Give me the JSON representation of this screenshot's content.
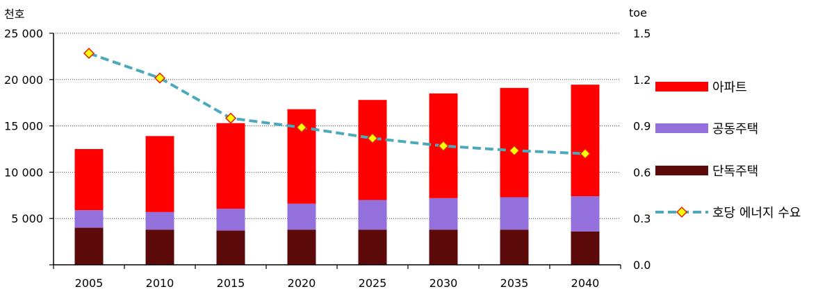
{
  "chart_data": {
    "type": "bar",
    "categories": [
      "2005",
      "2010",
      "2015",
      "2020",
      "2025",
      "2030",
      "2035",
      "2040"
    ],
    "stacked": true,
    "series": [
      {
        "name": "단독주택",
        "color": "#5c0a0a",
        "values": [
          4000,
          3800,
          3700,
          3800,
          3800,
          3800,
          3800,
          3600
        ]
      },
      {
        "name": "공동주택",
        "color": "#9370db",
        "values": [
          1900,
          1900,
          2350,
          2800,
          3200,
          3400,
          3500,
          3800
        ]
      },
      {
        "name": "아파트",
        "color": "#ff0000",
        "values": [
          6600,
          8200,
          9250,
          10200,
          10800,
          11300,
          11800,
          12050
        ]
      }
    ],
    "line": {
      "name": "호당 에너지 수요",
      "color": "#4ba9bb",
      "marker_fill": "#ffff00",
      "marker_stroke": "#e02010",
      "axis": "right",
      "values": [
        1.37,
        1.21,
        0.95,
        0.89,
        0.82,
        0.77,
        0.74,
        0.72
      ]
    },
    "left_axis": {
      "unit": "천호",
      "ylim": [
        0,
        25000
      ],
      "ticks": [
        {
          "value": 0,
          "label": ""
        },
        {
          "value": 5000,
          "label": "5 000"
        },
        {
          "value": 10000,
          "label": "10 000"
        },
        {
          "value": 15000,
          "label": "15 000"
        },
        {
          "value": 20000,
          "label": "20 000"
        },
        {
          "value": 25000,
          "label": "25 000"
        }
      ]
    },
    "right_axis": {
      "unit": "toe",
      "ylim": [
        0,
        1.5
      ],
      "ticks": [
        {
          "value": 0,
          "label": "0.0"
        },
        {
          "value": 0.3,
          "label": "0.3"
        },
        {
          "value": 0.6,
          "label": "0.6"
        },
        {
          "value": 0.9,
          "label": "0.9"
        },
        {
          "value": 1.2,
          "label": "1.2"
        },
        {
          "value": 1.5,
          "label": "1.5"
        }
      ]
    },
    "grid": true,
    "legend_position": "right",
    "legend_order": [
      "아파트",
      "공동주택",
      "단독주택",
      "호당 에너지 수요"
    ]
  }
}
